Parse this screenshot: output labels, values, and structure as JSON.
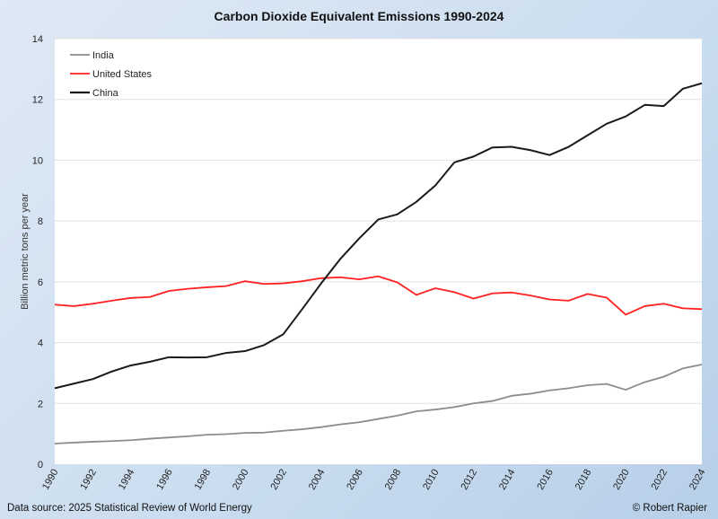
{
  "chart_data": {
    "type": "line",
    "title": "Carbon Dioxide Equivalent Emissions 1990-2024",
    "xlabel": "",
    "ylabel": "Billion metric tons per year",
    "xlim": [
      1990,
      2024
    ],
    "ylim": [
      0,
      14
    ],
    "yticks": [
      0,
      2,
      4,
      6,
      8,
      10,
      12,
      14
    ],
    "xticks": [
      1990,
      1992,
      1994,
      1996,
      1998,
      2000,
      2002,
      2004,
      2006,
      2008,
      2010,
      2012,
      2014,
      2016,
      2018,
      2020,
      2022,
      2024
    ],
    "grid": "horizontal",
    "legend": "top-left",
    "x": [
      1990,
      1991,
      1992,
      1993,
      1994,
      1995,
      1996,
      1997,
      1998,
      1999,
      2000,
      2001,
      2002,
      2003,
      2004,
      2005,
      2006,
      2007,
      2008,
      2009,
      2010,
      2011,
      2012,
      2013,
      2014,
      2015,
      2016,
      2017,
      2018,
      2019,
      2020,
      2021,
      2022,
      2023,
      2024
    ],
    "series": [
      {
        "name": "India",
        "color": "#8c8c8c",
        "values": [
          0.68,
          0.71,
          0.74,
          0.76,
          0.79,
          0.84,
          0.88,
          0.92,
          0.97,
          0.99,
          1.03,
          1.04,
          1.1,
          1.15,
          1.22,
          1.31,
          1.38,
          1.49,
          1.6,
          1.74,
          1.8,
          1.88,
          2.0,
          2.08,
          2.25,
          2.32,
          2.43,
          2.5,
          2.6,
          2.64,
          2.45,
          2.7,
          2.88,
          3.15,
          3.28
        ]
      },
      {
        "name": "United States",
        "color": "#ff2020",
        "values": [
          5.25,
          5.2,
          5.28,
          5.38,
          5.47,
          5.5,
          5.7,
          5.77,
          5.82,
          5.86,
          6.02,
          5.93,
          5.95,
          6.02,
          6.12,
          6.15,
          6.08,
          6.18,
          5.98,
          5.57,
          5.79,
          5.66,
          5.45,
          5.62,
          5.65,
          5.55,
          5.42,
          5.38,
          5.6,
          5.48,
          4.92,
          5.2,
          5.28,
          5.13,
          5.1
        ]
      },
      {
        "name": "China",
        "color": "#1a1a1a",
        "values": [
          2.5,
          2.65,
          2.8,
          3.05,
          3.25,
          3.37,
          3.52,
          3.51,
          3.52,
          3.66,
          3.72,
          3.92,
          4.27,
          5.1,
          5.95,
          6.75,
          7.43,
          8.05,
          8.22,
          8.63,
          9.17,
          9.93,
          10.12,
          10.42,
          10.44,
          10.33,
          10.17,
          10.44,
          10.82,
          11.2,
          11.44,
          11.82,
          11.78,
          12.35,
          12.53
        ]
      }
    ]
  },
  "footer": {
    "source": "Data source: 2025 Statistical Review of World Energy",
    "credit": "© Robert Rapier"
  }
}
